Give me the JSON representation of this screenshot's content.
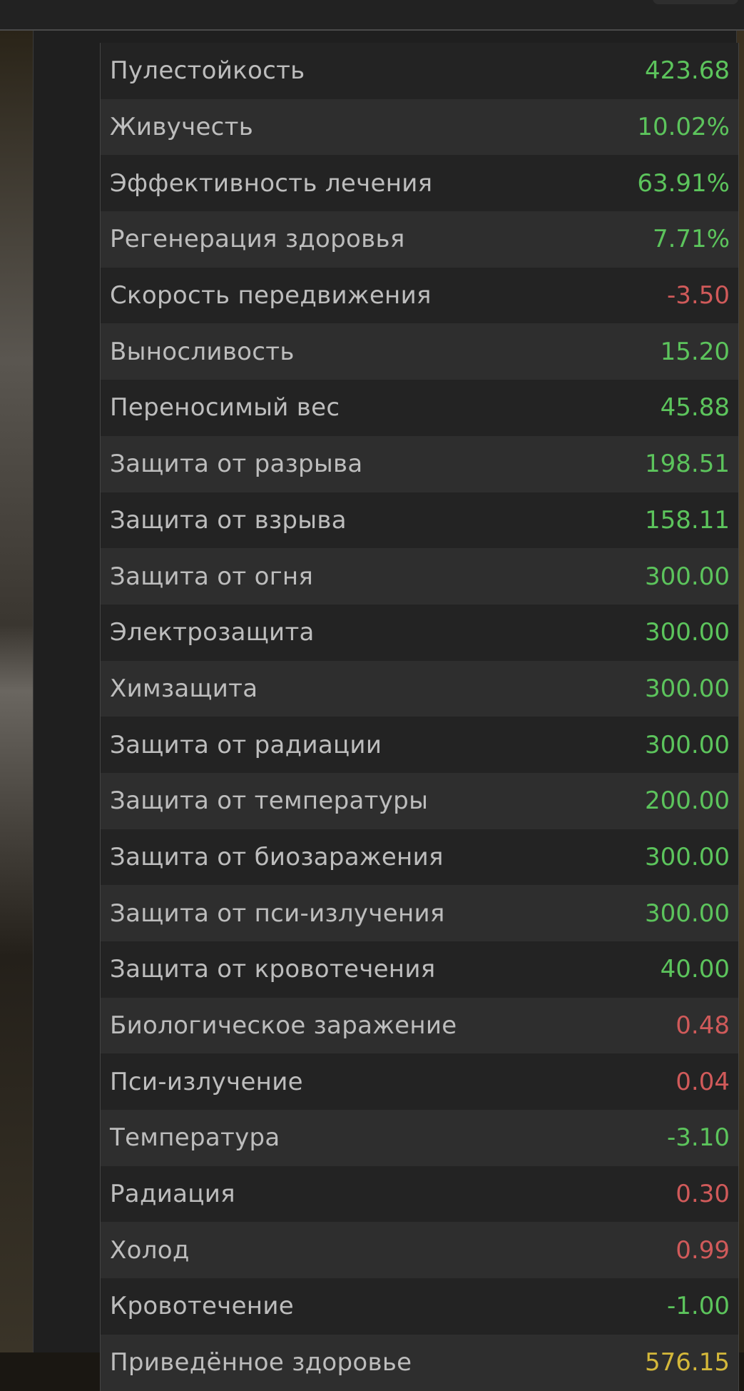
{
  "colors": {
    "positive": "#5cc45c",
    "negative": "#d05a5a",
    "highlight": "#d4b83a",
    "label": "#bdbdbd"
  },
  "stats": [
    {
      "label": "Пулестойкость",
      "value": "423.68",
      "tone": "g"
    },
    {
      "label": "Живучесть",
      "value": "10.02%",
      "tone": "g"
    },
    {
      "label": "Эффективность лечения",
      "value": "63.91%",
      "tone": "g"
    },
    {
      "label": "Регенерация здоровья",
      "value": "7.71%",
      "tone": "g"
    },
    {
      "label": "Скорость передвижения",
      "value": "-3.50",
      "tone": "r"
    },
    {
      "label": "Выносливость",
      "value": "15.20",
      "tone": "g"
    },
    {
      "label": "Переносимый вес",
      "value": "45.88",
      "tone": "g"
    },
    {
      "label": "Защита от разрыва",
      "value": "198.51",
      "tone": "g"
    },
    {
      "label": "Защита от взрыва",
      "value": "158.11",
      "tone": "g"
    },
    {
      "label": "Защита от огня",
      "value": "300.00",
      "tone": "g"
    },
    {
      "label": "Электрозащита",
      "value": "300.00",
      "tone": "g"
    },
    {
      "label": "Химзащита",
      "value": "300.00",
      "tone": "g"
    },
    {
      "label": "Защита от радиации",
      "value": "300.00",
      "tone": "g"
    },
    {
      "label": "Защита от температуры",
      "value": "200.00",
      "tone": "g"
    },
    {
      "label": "Защита от биозаражения",
      "value": "300.00",
      "tone": "g"
    },
    {
      "label": "Защита от пси-излучения",
      "value": "300.00",
      "tone": "g"
    },
    {
      "label": "Защита от кровотечения",
      "value": "40.00",
      "tone": "g"
    },
    {
      "label": "Биологическое заражение",
      "value": "0.48",
      "tone": "r"
    },
    {
      "label": "Пси-излучение",
      "value": "0.04",
      "tone": "r"
    },
    {
      "label": "Температура",
      "value": "-3.10",
      "tone": "g"
    },
    {
      "label": "Радиация",
      "value": "0.30",
      "tone": "r"
    },
    {
      "label": "Холод",
      "value": "0.99",
      "tone": "r"
    },
    {
      "label": "Кровотечение",
      "value": "-1.00",
      "tone": "g"
    },
    {
      "label": "Приведённое здоровье",
      "value": "576.15",
      "tone": "y"
    }
  ]
}
